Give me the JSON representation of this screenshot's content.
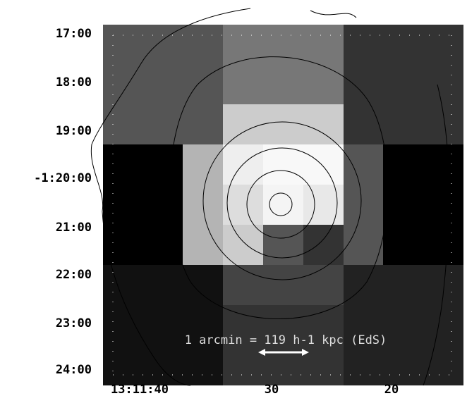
{
  "axes": {
    "y_labels": [
      "17:00",
      "18:00",
      "19:00",
      "-1:20:00",
      "21:00",
      "22:00",
      "23:00",
      "24:00"
    ],
    "x_labels": [
      "13:11:40",
      "30",
      "20"
    ]
  },
  "annotation": "1 arcmin = 119 h-1 kpc (EdS)"
}
